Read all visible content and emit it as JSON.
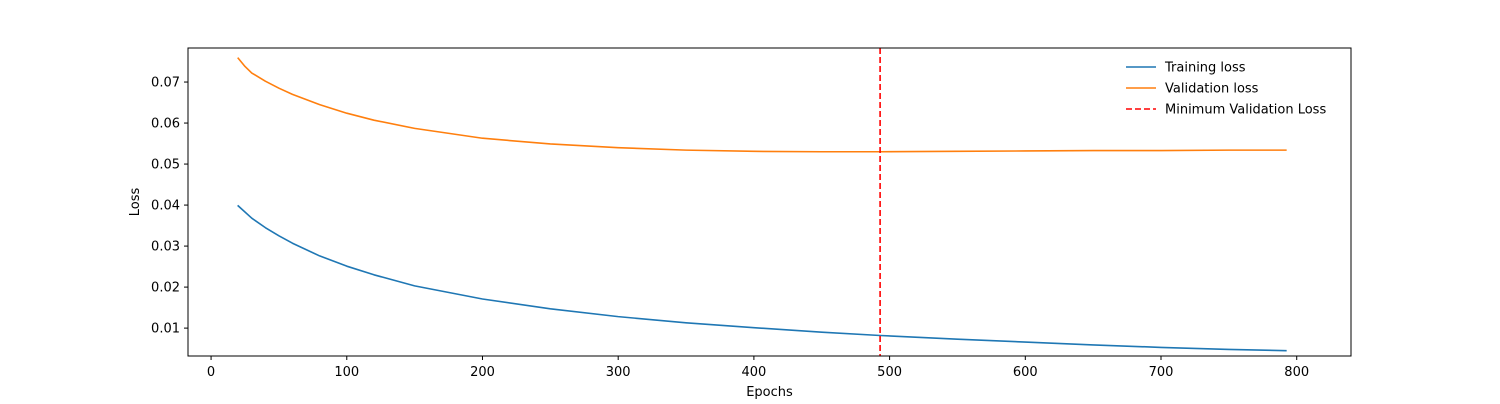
{
  "chart_data": {
    "type": "line",
    "title": "",
    "xlabel": "Epochs",
    "ylabel": "Loss",
    "xlim": [
      -17,
      840
    ],
    "ylim": [
      0.0032,
      0.0783
    ],
    "x_ticks": [
      0,
      100,
      200,
      300,
      400,
      500,
      600,
      700,
      800
    ],
    "y_ticks": [
      0.01,
      0.02,
      0.03,
      0.04,
      0.05,
      0.06,
      0.07,
      0.08
    ],
    "grid": false,
    "legend_position": "top-right",
    "series": [
      {
        "name": "Training loss",
        "color": "#1f77b4",
        "style": "solid",
        "x": [
          20,
          30,
          40,
          50,
          60,
          80,
          100,
          120,
          150,
          200,
          250,
          300,
          350,
          400,
          450,
          493,
          550,
          600,
          650,
          700,
          750,
          792
        ],
        "y": [
          0.0398,
          0.0368,
          0.0345,
          0.0325,
          0.0307,
          0.0276,
          0.0251,
          0.023,
          0.0203,
          0.0171,
          0.0147,
          0.0128,
          0.0113,
          0.0101,
          0.009,
          0.0082,
          0.0073,
          0.0066,
          0.0059,
          0.0053,
          0.0048,
          0.0045
        ]
      },
      {
        "name": "Validation loss",
        "color": "#ff7f0e",
        "style": "solid",
        "x": [
          20,
          25,
          30,
          40,
          50,
          60,
          80,
          100,
          120,
          150,
          200,
          250,
          300,
          350,
          400,
          450,
          493,
          550,
          600,
          650,
          700,
          750,
          792
        ],
        "y": [
          0.0758,
          0.0738,
          0.0722,
          0.0702,
          0.0685,
          0.067,
          0.0645,
          0.0624,
          0.0607,
          0.0587,
          0.0563,
          0.0549,
          0.054,
          0.0534,
          0.0531,
          0.053,
          0.053,
          0.0531,
          0.0532,
          0.0533,
          0.0533,
          0.0534,
          0.0534
        ]
      }
    ],
    "vlines": [
      {
        "name": "Minimum Validation Loss",
        "x": 493,
        "color": "#ff0000",
        "style": "dashed"
      }
    ]
  }
}
